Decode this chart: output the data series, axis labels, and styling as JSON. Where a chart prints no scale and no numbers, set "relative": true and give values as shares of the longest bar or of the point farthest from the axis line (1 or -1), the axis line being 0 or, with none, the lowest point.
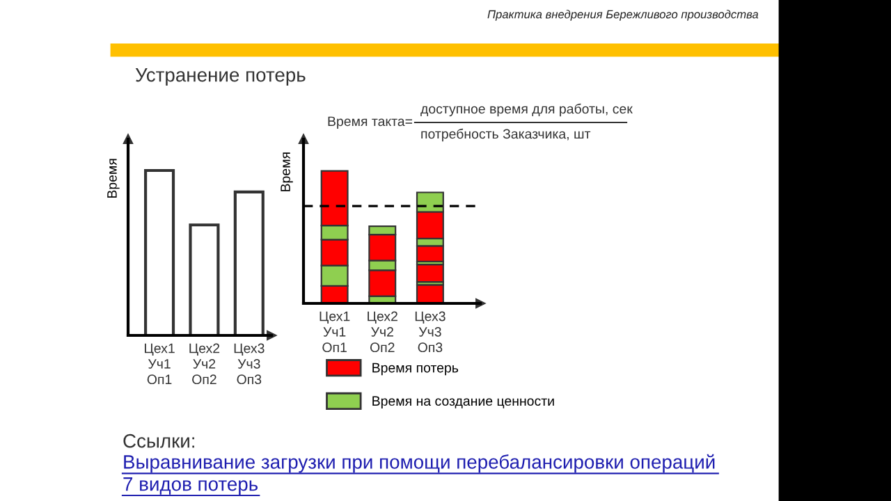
{
  "chart_data": [
    {
      "type": "bar",
      "title": "Устранение потерь",
      "ylabel": "Время",
      "relative": true,
      "categories": [
        "Цех1\nУч1\nОп1",
        "Цех2\nУч2\nОп2",
        "Цех3\nУч3\nОп3"
      ],
      "values": [
        1,
        0.67,
        0.87
      ],
      "color": "#ffffff",
      "annotations": [
        "Практика внедрения Бережливого производства",
        "Ссылки:",
        "Выравнивание загрузки при помощи перебалансировки операций",
        "7 видов потерь"
      ],
      "grid": false,
      "legend": false
    },
    {
      "type": "bar",
      "stacked": true,
      "relative": true,
      "ylabel": "Время",
      "categories": [
        "Цех1\nУч1\nОп1",
        "Цех2\nУч2\nОп2",
        "Цех3\nУч3\nОп3"
      ],
      "series": [
        {
          "name": "Время потерь",
          "color": "#ff0000",
          "values": [
            0.132,
            null,
            0.14
          ]
        },
        {
          "name": "Время на создание ценности",
          "color": "#8fcf50",
          "values": [
            0.154,
            0.055,
            0.022
          ]
        },
        {
          "color": "#ff0000",
          "values": [
            0.195,
            0.195,
            0.132
          ]
        },
        {
          "color": "#8fcf50",
          "values": [
            0.107,
            0.074,
            0.022
          ]
        },
        {
          "color": "#ff0000",
          "values": [
            0.412,
            0.195,
            0.118
          ]
        },
        {
          "color": "#8fcf50",
          "values": [
            null,
            0.063,
            0.055
          ]
        },
        {
          "color": "#ff0000",
          "values": [
            null,
            null,
            0.202
          ]
        },
        {
          "color": "#8fcf50",
          "values": [
            null,
            null,
            0.147
          ]
        }
      ],
      "ref_lines": [
        {
          "axis": "y",
          "value": 0.735,
          "color": "#000000",
          "line_style": "dashed"
        }
      ],
      "annotations": [
        "Время такта=",
        "доступное время для работы, сек",
        "потребность Заказчика, шт"
      ],
      "grid": false,
      "legend": "bottom"
    }
  ]
}
